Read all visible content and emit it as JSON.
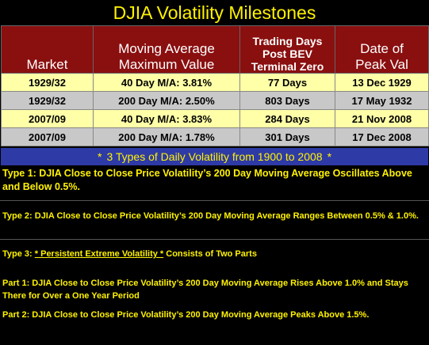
{
  "title": "DJIA Volatility Milestones",
  "table": {
    "headers": {
      "market": "Market",
      "ma_line1": "Moving Average",
      "ma_line2": "Maximum Value",
      "td_line1": "Trading Days",
      "td_line2": "Post BEV",
      "td_line3": "Terminal Zero",
      "date_line1": "Date of",
      "date_line2": "Peak Val"
    },
    "rows": [
      {
        "market": "1929/32",
        "ma": "40 Day M/A: 3.81%",
        "days": "77 Days",
        "date": "13 Dec 1929",
        "shade": "yellow"
      },
      {
        "market": "1929/32",
        "ma": "200 Day M/A: 2.50%",
        "days": "803 Days",
        "date": "17 May 1932",
        "shade": "gray"
      },
      {
        "market": "2007/09",
        "ma": "40 Day M/A: 3.83%",
        "days": "284 Days",
        "date": "21 Nov 2008",
        "shade": "yellow"
      },
      {
        "market": "2007/09",
        "ma": "200 Day M/A: 1.78%",
        "days": "301 Days",
        "date": "17 Dec 2008",
        "shade": "gray"
      }
    ]
  },
  "banner": {
    "star": "*",
    "text": "3 Types of Daily Volatility from 1900 to 2008"
  },
  "notes": {
    "type1": "Type 1: DJIA Close to Close Price Volatility’s 200 Day Moving Average Oscillates Above and Below 0.5%.",
    "type2_label": "Type 2",
    "type2_text": ": DJIA Close to Close Price Volatility’s 200 Day Moving Average Ranges Between 0.5% & 1.0%.",
    "type3_label": "Type 3",
    "type3_colon": ": ",
    "type3_em": "* Persistent Extreme Volatility *",
    "type3_rest": " Consists of Two Parts",
    "part1": "Part 1:  DJIA Close to Close Price Volatility’s 200 Day Moving Average Rises Above 1.0% and Stays There for Over a One Year Period",
    "part2": "Part 2: DJIA Close to Close Price Volatility’s 200 Day Moving Average Peaks Above 1.5%."
  },
  "colors": {
    "title_text": "#fff200",
    "header_bg": "#8a0f0f",
    "row_yellow": "#ffffa8",
    "row_gray": "#c8c8c8",
    "banner_bg": "#2e3aa6",
    "note_text": "#fff200"
  }
}
